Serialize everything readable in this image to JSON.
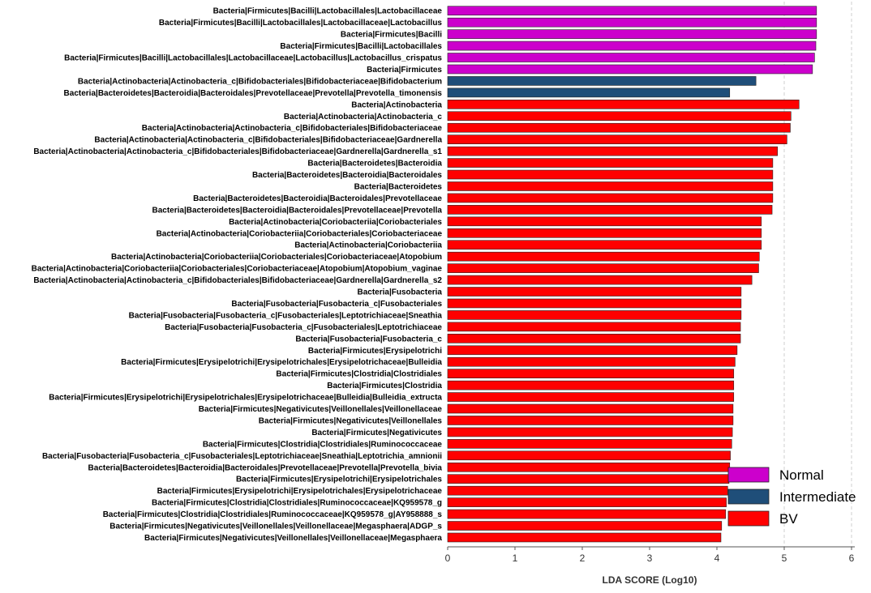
{
  "chart_data": {
    "type": "bar",
    "orientation": "horizontal",
    "xlabel": "LDA SCORE (Log10)",
    "xlim": [
      0,
      6
    ],
    "xticks": [
      0,
      1,
      2,
      3,
      4,
      5,
      6
    ],
    "grid": "vertical dashed lines at x = 5 and x = 6",
    "groups": [
      {
        "name": "Normal",
        "color": "#CC00CC"
      },
      {
        "name": "Intermediate",
        "color": "#1F4E79"
      },
      {
        "name": "BV",
        "color": "#FF0000"
      }
    ],
    "legend": {
      "position": "bottom-right",
      "items": [
        "Normal",
        "Intermediate",
        "BV"
      ]
    },
    "categories": [
      "Bacteria|Firmicutes|Bacilli|Lactobacillales|Lactobacillaceae",
      "Bacteria|Firmicutes|Bacilli|Lactobacillales|Lactobacillaceae|Lactobacillus",
      "Bacteria|Firmicutes|Bacilli",
      "Bacteria|Firmicutes|Bacilli|Lactobacillales",
      "Bacteria|Firmicutes|Bacilli|Lactobacillales|Lactobacillaceae|Lactobacillus|Lactobacillus_crispatus",
      "Bacteria|Firmicutes",
      "Bacteria|Actinobacteria|Actinobacteria_c|Bifidobacteriales|Bifidobacteriaceae|Bifidobacterium",
      "Bacteria|Bacteroidetes|Bacteroidia|Bacteroidales|Prevotellaceae|Prevotella|Prevotella_timonensis",
      "Bacteria|Actinobacteria",
      "Bacteria|Actinobacteria|Actinobacteria_c",
      "Bacteria|Actinobacteria|Actinobacteria_c|Bifidobacteriales|Bifidobacteriaceae",
      "Bacteria|Actinobacteria|Actinobacteria_c|Bifidobacteriales|Bifidobacteriaceae|Gardnerella",
      "Bacteria|Actinobacteria|Actinobacteria_c|Bifidobacteriales|Bifidobacteriaceae|Gardnerella|Gardnerella_s1",
      "Bacteria|Bacteroidetes|Bacteroidia",
      "Bacteria|Bacteroidetes|Bacteroidia|Bacteroidales",
      "Bacteria|Bacteroidetes",
      "Bacteria|Bacteroidetes|Bacteroidia|Bacteroidales|Prevotellaceae",
      "Bacteria|Bacteroidetes|Bacteroidia|Bacteroidales|Prevotellaceae|Prevotella",
      "Bacteria|Actinobacteria|Coriobacteriia|Coriobacteriales",
      "Bacteria|Actinobacteria|Coriobacteriia|Coriobacteriales|Coriobacteriaceae",
      "Bacteria|Actinobacteria|Coriobacteriia",
      "Bacteria|Actinobacteria|Coriobacteriia|Coriobacteriales|Coriobacteriaceae|Atopobium",
      "Bacteria|Actinobacteria|Coriobacteriia|Coriobacteriales|Coriobacteriaceae|Atopobium|Atopobium_vaginae",
      "Bacteria|Actinobacteria|Actinobacteria_c|Bifidobacteriales|Bifidobacteriaceae|Gardnerella|Gardnerella_s2",
      "Bacteria|Fusobacteria",
      "Bacteria|Fusobacteria|Fusobacteria_c|Fusobacteriales",
      "Bacteria|Fusobacteria|Fusobacteria_c|Fusobacteriales|Leptotrichiaceae|Sneathia",
      "Bacteria|Fusobacteria|Fusobacteria_c|Fusobacteriales|Leptotrichiaceae",
      "Bacteria|Fusobacteria|Fusobacteria_c",
      "Bacteria|Firmicutes|Erysipelotrichi",
      "Bacteria|Firmicutes|Erysipelotrichi|Erysipelotrichales|Erysipelotrichaceae|Bulleidia",
      "Bacteria|Firmicutes|Clostridia|Clostridiales",
      "Bacteria|Firmicutes|Clostridia",
      "Bacteria|Firmicutes|Erysipelotrichi|Erysipelotrichales|Erysipelotrichaceae|Bulleidia|Bulleidia_extructa",
      "Bacteria|Firmicutes|Negativicutes|Veillonellales|Veillonellaceae",
      "Bacteria|Firmicutes|Negativicutes|Veillonellales",
      "Bacteria|Firmicutes|Negativicutes",
      "Bacteria|Firmicutes|Clostridia|Clostridiales|Ruminococcaceae",
      "Bacteria|Fusobacteria|Fusobacteria_c|Fusobacteriales|Leptotrichiaceae|Sneathia|Leptotrichia_amnionii",
      "Bacteria|Bacteroidetes|Bacteroidia|Bacteroidales|Prevotellaceae|Prevotella|Prevotella_bivia",
      "Bacteria|Firmicutes|Erysipelotrichi|Erysipelotrichales",
      "Bacteria|Firmicutes|Erysipelotrichi|Erysipelotrichales|Erysipelotrichaceae",
      "Bacteria|Firmicutes|Clostridia|Clostridiales|Ruminococcaceae|KQ959578_g",
      "Bacteria|Firmicutes|Clostridia|Clostridiales|Ruminococcaceae|KQ959578_g|AY958888_s",
      "Bacteria|Firmicutes|Negativicutes|Veillonellales|Veillonellaceae|Megasphaera|ADGP_s",
      "Bacteria|Firmicutes|Negativicutes|Veillonellales|Veillonellaceae|Megasphaera"
    ],
    "values": [
      5.48,
      5.48,
      5.48,
      5.47,
      5.45,
      5.42,
      4.58,
      4.19,
      5.22,
      5.1,
      5.09,
      5.04,
      4.9,
      4.83,
      4.83,
      4.83,
      4.83,
      4.82,
      4.66,
      4.66,
      4.66,
      4.63,
      4.62,
      4.52,
      4.36,
      4.36,
      4.36,
      4.35,
      4.35,
      4.3,
      4.27,
      4.25,
      4.25,
      4.25,
      4.24,
      4.24,
      4.23,
      4.22,
      4.2,
      4.19,
      4.18,
      4.16,
      4.14,
      4.13,
      4.07,
      4.06
    ],
    "group_of_bar": [
      "Normal",
      "Normal",
      "Normal",
      "Normal",
      "Normal",
      "Normal",
      "Intermediate",
      "Intermediate",
      "BV",
      "BV",
      "BV",
      "BV",
      "BV",
      "BV",
      "BV",
      "BV",
      "BV",
      "BV",
      "BV",
      "BV",
      "BV",
      "BV",
      "BV",
      "BV",
      "BV",
      "BV",
      "BV",
      "BV",
      "BV",
      "BV",
      "BV",
      "BV",
      "BV",
      "BV",
      "BV",
      "BV",
      "BV",
      "BV",
      "BV",
      "BV",
      "BV",
      "BV",
      "BV",
      "BV",
      "BV",
      "BV"
    ]
  }
}
